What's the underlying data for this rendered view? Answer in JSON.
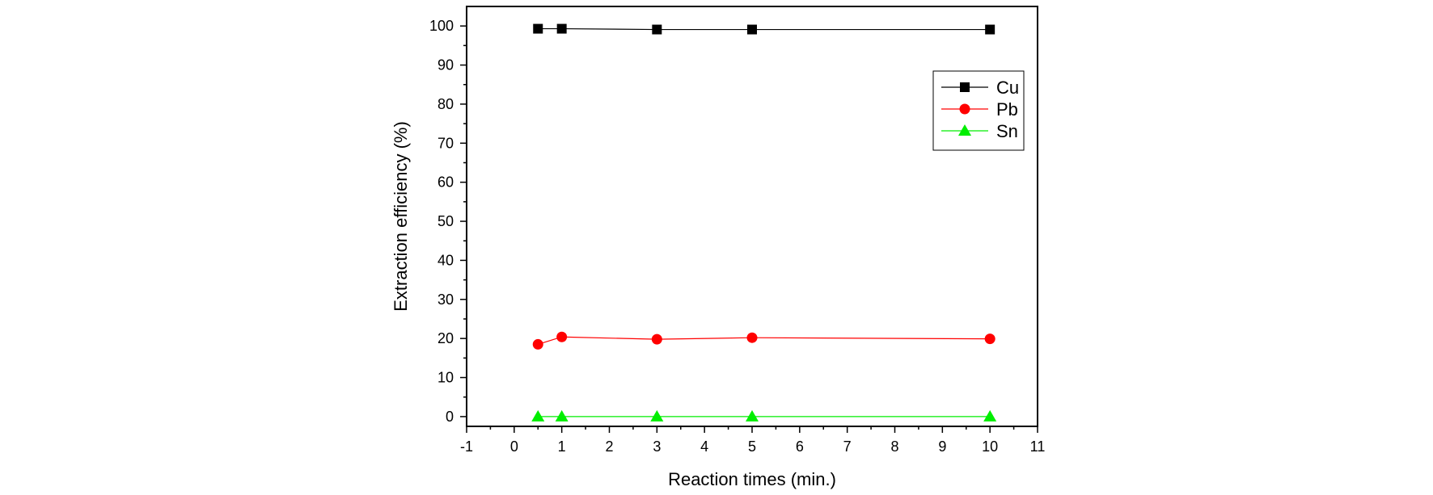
{
  "chart_data": {
    "type": "line",
    "xlabel": "Reaction times (min.)",
    "ylabel": "Extraction efficiency (%)",
    "xlim": [
      -1,
      11
    ],
    "ylim": [
      -2.5,
      105
    ],
    "xticks": [
      -1,
      0,
      1,
      2,
      3,
      4,
      5,
      6,
      7,
      8,
      9,
      10,
      11
    ],
    "yticks": [
      0,
      10,
      20,
      30,
      40,
      50,
      60,
      70,
      80,
      90,
      100
    ],
    "legend_position": "top-right",
    "grid": false,
    "series": [
      {
        "name": "Cu",
        "color": "#000000",
        "marker": "square",
        "x": [
          0.5,
          1,
          3,
          5,
          10
        ],
        "y": [
          99.3,
          99.3,
          99.1,
          99.1,
          99.1
        ]
      },
      {
        "name": "Pb",
        "color": "#ff0000",
        "marker": "circle",
        "x": [
          0.5,
          1,
          3,
          5,
          10
        ],
        "y": [
          18.5,
          20.4,
          19.8,
          20.2,
          19.9
        ]
      },
      {
        "name": "Sn",
        "color": "#00ee00",
        "marker": "triangle",
        "x": [
          0.5,
          1,
          3,
          5,
          10
        ],
        "y": [
          0,
          0,
          0,
          0,
          0
        ]
      }
    ]
  }
}
